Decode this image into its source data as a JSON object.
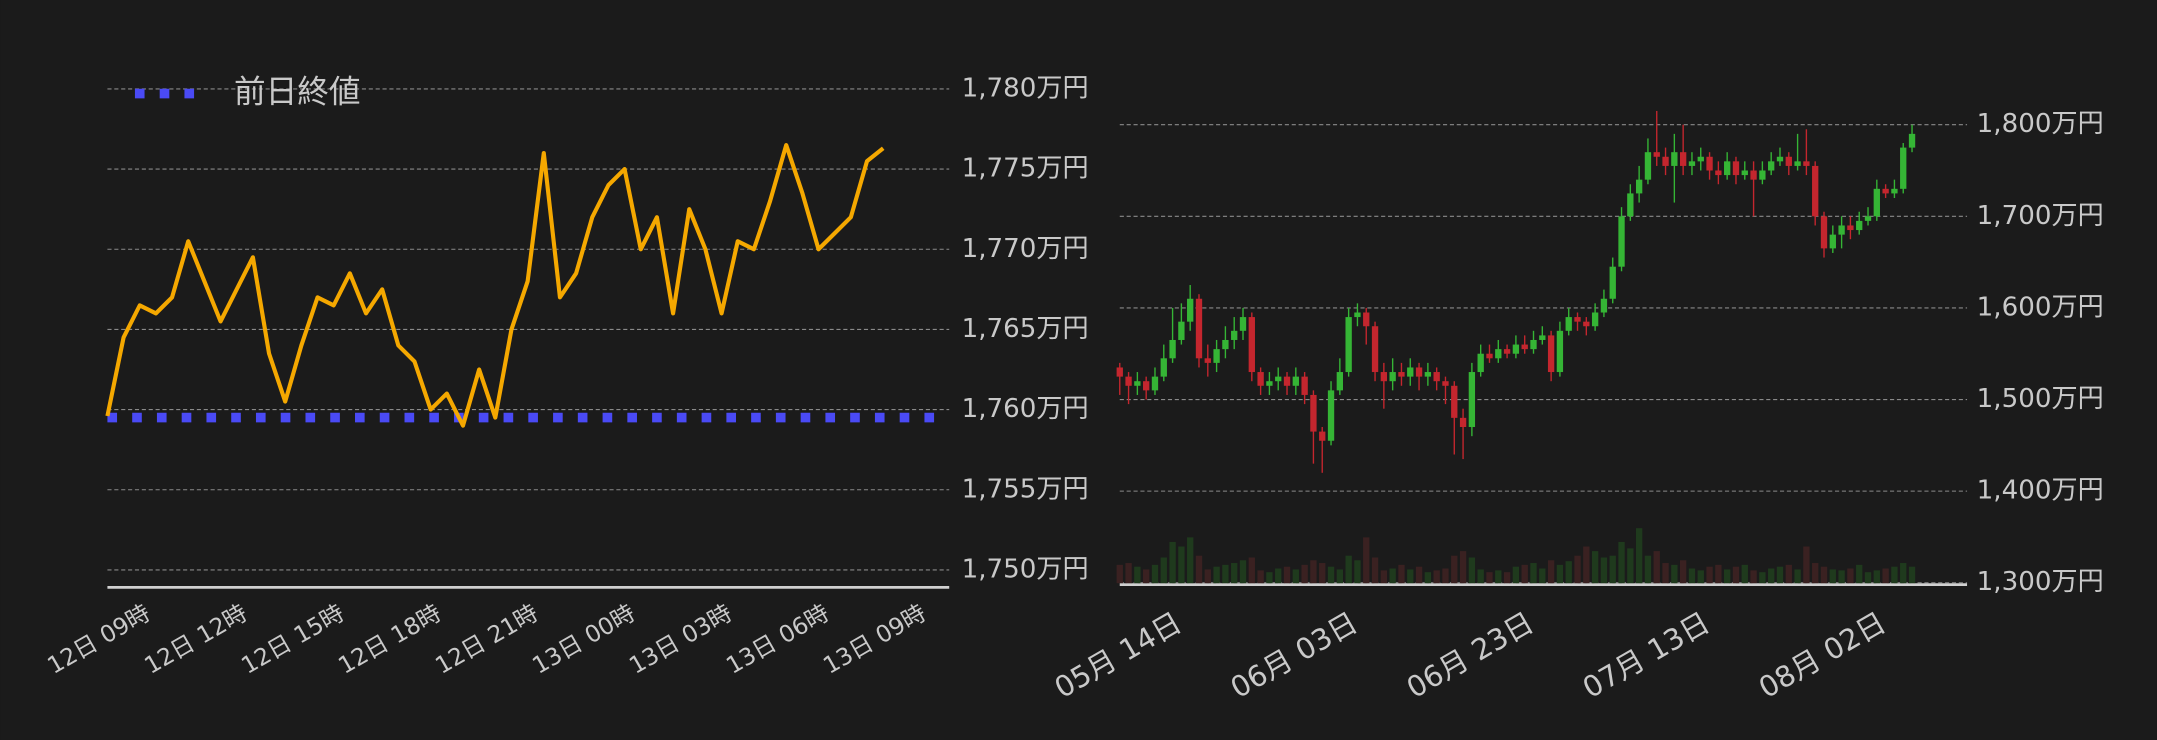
{
  "chart_data": [
    {
      "type": "line",
      "categories": [
        "12日 09時",
        null,
        null,
        null,
        null,
        null,
        "12日 12時",
        null,
        null,
        null,
        null,
        null,
        "12日 15時",
        null,
        null,
        null,
        null,
        null,
        "12日 18時",
        null,
        null,
        null,
        null,
        null,
        "12日 21時",
        null,
        null,
        null,
        null,
        null,
        "13日 00時",
        null,
        null,
        null,
        null,
        null,
        "13日 03時",
        null,
        null,
        null,
        null,
        null,
        "13日 06時",
        null,
        null,
        null,
        null,
        null,
        "13日 09時"
      ],
      "series": [
        {
          "color": "#f5a800",
          "values": [
            1759.6,
            1764.5,
            1766.5,
            1766,
            1767,
            1770.5,
            1768,
            1765.5,
            1767.5,
            1769.5,
            1763.5,
            1760.5,
            1764,
            1767,
            1766.5,
            1768.5,
            1766,
            1767.5,
            1764,
            1763,
            1760,
            1761,
            1759,
            1762.5,
            1759.5,
            1765,
            1768,
            1776,
            1767,
            1768.5,
            1772,
            1774,
            1775,
            1770,
            1772,
            1766,
            1772.5,
            1770,
            1766,
            1770.5,
            1770,
            1773,
            1776.5,
            1773.5,
            1770,
            1771,
            1772,
            1775.5,
            1776.3
          ]
        }
      ],
      "reference_line": {
        "name": "前日終値",
        "value": 1759.5,
        "color": "#4a4af5"
      },
      "ylim": [
        1749,
        1781
      ],
      "yticks": [
        {
          "value": 1750,
          "label": "1,750万円"
        },
        {
          "value": 1755,
          "label": "1,755万円"
        },
        {
          "value": 1760,
          "label": "1,760万円"
        },
        {
          "value": 1765,
          "label": "1,765万円"
        },
        {
          "value": 1770,
          "label": "1,770万円"
        },
        {
          "value": 1775,
          "label": "1,775万円"
        },
        {
          "value": 1780,
          "label": "1,780万円"
        }
      ],
      "grid": true,
      "legend": "top-left"
    },
    {
      "type": "candlestick",
      "categories": [
        null,
        null,
        null,
        null,
        "05月 14日",
        null,
        null,
        null,
        null,
        null,
        null,
        null,
        null,
        null,
        null,
        null,
        null,
        null,
        null,
        null,
        null,
        null,
        null,
        null,
        "06月 03日",
        null,
        null,
        null,
        null,
        null,
        null,
        null,
        null,
        null,
        null,
        null,
        null,
        null,
        null,
        null,
        null,
        null,
        null,
        null,
        "06月 23日",
        null,
        null,
        null,
        null,
        null,
        null,
        null,
        null,
        null,
        null,
        null,
        null,
        null,
        null,
        null,
        null,
        null,
        null,
        null,
        "07月 13日",
        null,
        null,
        null,
        null,
        null,
        null,
        null,
        null,
        null,
        null,
        null,
        null,
        null,
        null,
        null,
        null,
        null,
        null,
        null,
        "08月 02日",
        null,
        null,
        null,
        null,
        null,
        null
      ],
      "open": [
        1535,
        1525,
        1515,
        1520,
        1510,
        1525,
        1545,
        1565,
        1585,
        1610,
        1545,
        1540,
        1555,
        1565,
        1575,
        1590,
        1530,
        1515,
        1520,
        1525,
        1515,
        1525,
        1505,
        1465,
        1455,
        1510,
        1530,
        1590,
        1595,
        1580,
        1530,
        1520,
        1530,
        1525,
        1535,
        1525,
        1530,
        1520,
        1515,
        1480,
        1470,
        1530,
        1550,
        1545,
        1555,
        1550,
        1560,
        1555,
        1565,
        1570,
        1530,
        1575,
        1590,
        1585,
        1580,
        1595,
        1610,
        1645,
        1700,
        1725,
        1740,
        1770,
        1765,
        1755,
        1770,
        1755,
        1760,
        1765,
        1750,
        1745,
        1760,
        1745,
        1750,
        1740,
        1750,
        1760,
        1765,
        1755,
        1760,
        1755,
        1700,
        1665,
        1680,
        1690,
        1685,
        1695,
        1700,
        1730,
        1725,
        1730,
        1775
      ],
      "high": [
        1540,
        1530,
        1530,
        1525,
        1535,
        1560,
        1600,
        1605,
        1625,
        1615,
        1560,
        1565,
        1580,
        1590,
        1600,
        1595,
        1535,
        1530,
        1535,
        1530,
        1535,
        1530,
        1510,
        1470,
        1520,
        1545,
        1600,
        1605,
        1600,
        1585,
        1540,
        1545,
        1540,
        1545,
        1540,
        1540,
        1535,
        1525,
        1520,
        1490,
        1540,
        1560,
        1560,
        1565,
        1560,
        1570,
        1570,
        1575,
        1580,
        1575,
        1585,
        1600,
        1595,
        1590,
        1605,
        1620,
        1655,
        1710,
        1735,
        1755,
        1785,
        1815,
        1775,
        1790,
        1800,
        1770,
        1775,
        1770,
        1760,
        1770,
        1765,
        1760,
        1760,
        1760,
        1770,
        1775,
        1770,
        1790,
        1795,
        1760,
        1705,
        1690,
        1700,
        1700,
        1705,
        1710,
        1740,
        1735,
        1740,
        1780,
        1800
      ],
      "low": [
        1505,
        1495,
        1505,
        1500,
        1505,
        1520,
        1540,
        1560,
        1575,
        1535,
        1525,
        1530,
        1545,
        1555,
        1565,
        1520,
        1505,
        1505,
        1510,
        1505,
        1505,
        1495,
        1430,
        1420,
        1450,
        1505,
        1525,
        1580,
        1560,
        1520,
        1490,
        1510,
        1515,
        1515,
        1510,
        1515,
        1510,
        1495,
        1440,
        1435,
        1460,
        1525,
        1540,
        1540,
        1545,
        1545,
        1550,
        1550,
        1560,
        1520,
        1525,
        1570,
        1575,
        1570,
        1575,
        1590,
        1605,
        1640,
        1695,
        1715,
        1735,
        1755,
        1745,
        1715,
        1745,
        1745,
        1750,
        1740,
        1735,
        1740,
        1735,
        1740,
        1700,
        1735,
        1745,
        1755,
        1745,
        1750,
        1745,
        1690,
        1655,
        1660,
        1665,
        1675,
        1680,
        1690,
        1695,
        1720,
        1720,
        1725,
        1770
      ],
      "close": [
        1525,
        1515,
        1520,
        1510,
        1525,
        1545,
        1565,
        1585,
        1610,
        1545,
        1540,
        1555,
        1565,
        1575,
        1590,
        1530,
        1515,
        1520,
        1525,
        1515,
        1525,
        1505,
        1465,
        1455,
        1510,
        1530,
        1590,
        1595,
        1580,
        1530,
        1520,
        1530,
        1525,
        1535,
        1525,
        1530,
        1520,
        1515,
        1480,
        1470,
        1530,
        1550,
        1545,
        1555,
        1550,
        1560,
        1555,
        1565,
        1570,
        1530,
        1575,
        1590,
        1585,
        1580,
        1595,
        1610,
        1645,
        1700,
        1725,
        1740,
        1770,
        1765,
        1755,
        1770,
        1755,
        1760,
        1765,
        1750,
        1745,
        1760,
        1745,
        1750,
        1740,
        1750,
        1760,
        1765,
        1755,
        1760,
        1755,
        1700,
        1665,
        1680,
        1690,
        1685,
        1695,
        1700,
        1730,
        1725,
        1730,
        1775,
        1790
      ],
      "volume": [
        20,
        22,
        18,
        15,
        20,
        28,
        45,
        40,
        50,
        30,
        15,
        18,
        20,
        22,
        25,
        28,
        14,
        12,
        16,
        18,
        15,
        20,
        25,
        22,
        18,
        15,
        30,
        25,
        50,
        28,
        14,
        16,
        20,
        15,
        18,
        12,
        14,
        16,
        30,
        35,
        28,
        15,
        12,
        14,
        12,
        18,
        20,
        22,
        16,
        25,
        20,
        24,
        30,
        40,
        35,
        28,
        30,
        45,
        38,
        60,
        30,
        35,
        22,
        20,
        25,
        16,
        14,
        18,
        20,
        15,
        18,
        20,
        14,
        12,
        16,
        18,
        20,
        15,
        40,
        22,
        18,
        15,
        14,
        16,
        20,
        12,
        14,
        16,
        18,
        22,
        18
      ],
      "up_color": "#35b535",
      "down_color": "#c4262e",
      "volume_up_color": "#1f3a1d",
      "volume_down_color": "#3a2121",
      "ylim": [
        1295,
        1810
      ],
      "yticks": [
        {
          "value": 1300,
          "label": "1,300万円"
        },
        {
          "value": 1400,
          "label": "1,400万円"
        },
        {
          "value": 1500,
          "label": "1,500万円"
        },
        {
          "value": 1600,
          "label": "1,600万円"
        },
        {
          "value": 1700,
          "label": "1,700万円"
        },
        {
          "value": 1800,
          "label": "1,800万円"
        }
      ],
      "grid": true
    }
  ]
}
